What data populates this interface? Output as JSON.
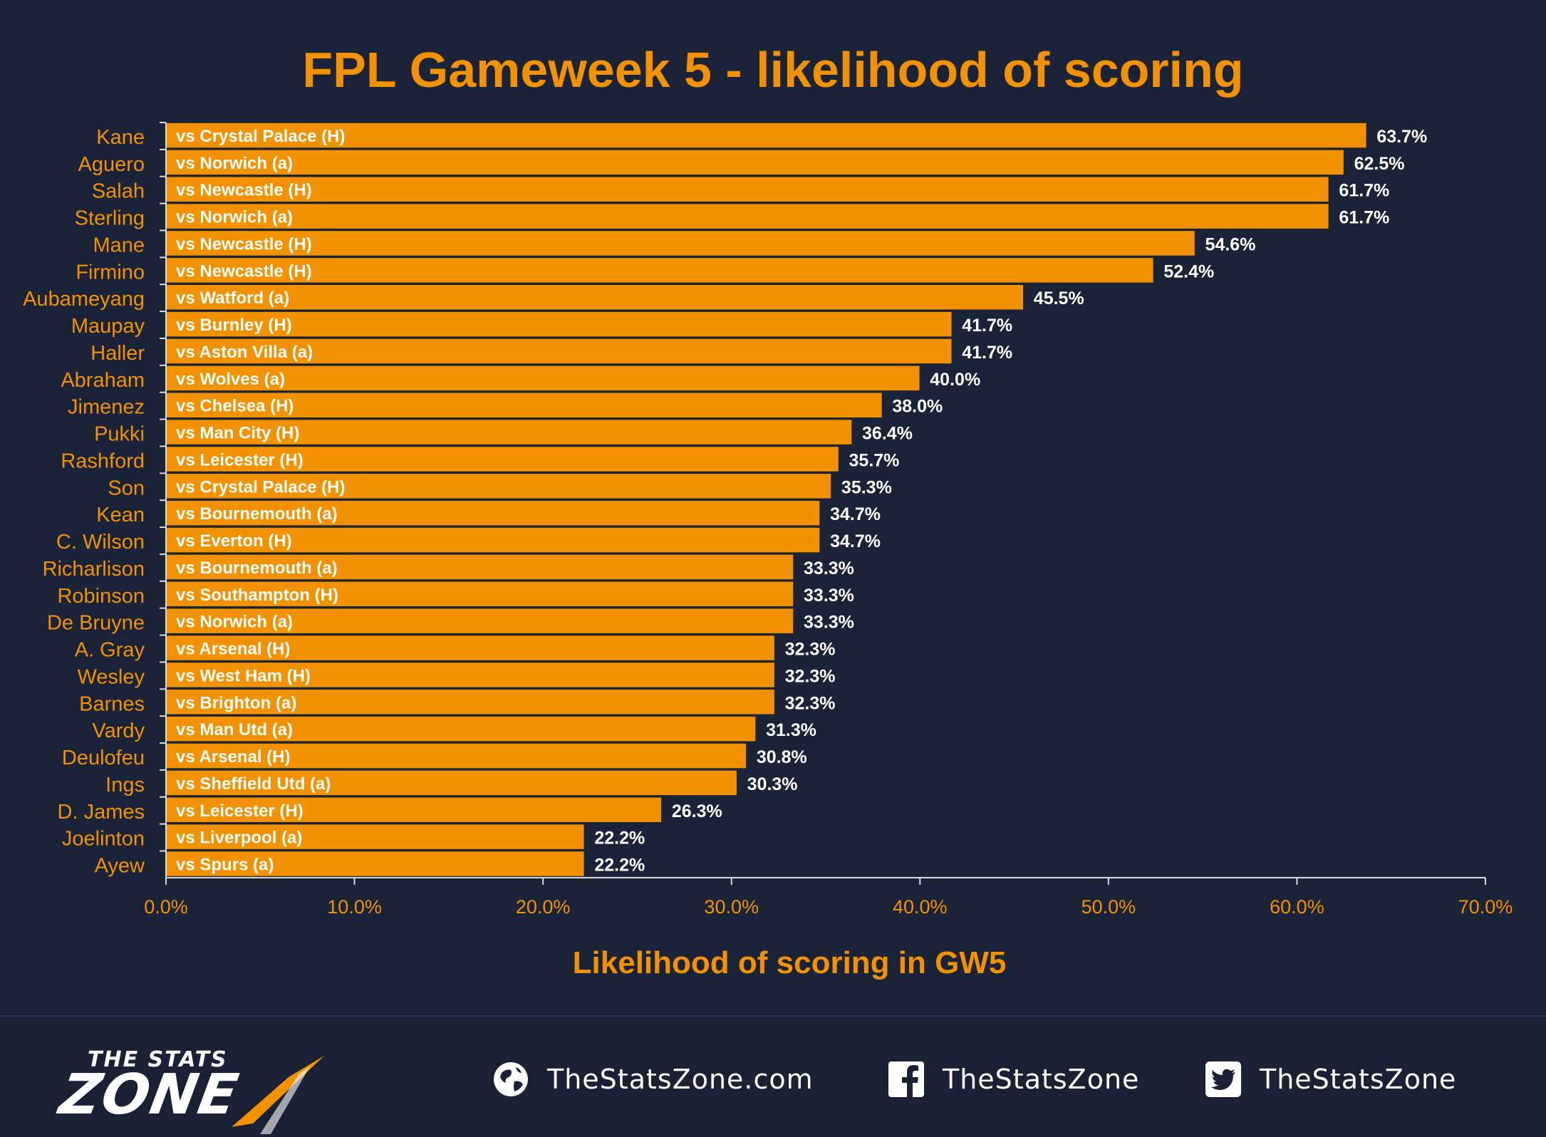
{
  "chart_data": {
    "type": "bar",
    "orientation": "horizontal",
    "title": "FPL Gameweek 5 - likelihood of scoring",
    "xlabel": "Likelihood of scoring in GW5",
    "ylabel": "",
    "xlim": [
      0,
      70
    ],
    "x_ticks": [
      0,
      10,
      20,
      30,
      40,
      50,
      60,
      70
    ],
    "x_tick_labels": [
      "0.0%",
      "10.0%",
      "20.0%",
      "30.0%",
      "40.0%",
      "50.0%",
      "60.0%",
      "70.0%"
    ],
    "grid": false,
    "categories": [
      "Kane",
      "Aguero",
      "Salah",
      "Sterling",
      "Mane",
      "Firmino",
      "Aubameyang",
      "Maupay",
      "Haller",
      "Abraham",
      "Jimenez",
      "Pukki",
      "Rashford",
      "Son",
      "Kean",
      "C. Wilson",
      "Richarlison",
      "Robinson",
      "De Bruyne",
      "A. Gray",
      "Wesley",
      "Barnes",
      "Vardy",
      "Deulofeu",
      "Ings",
      "D. James",
      "Joelinton",
      "Ayew"
    ],
    "values": [
      63.7,
      62.5,
      61.7,
      61.7,
      54.6,
      52.4,
      45.5,
      41.7,
      41.7,
      40.0,
      38.0,
      36.4,
      35.7,
      35.3,
      34.7,
      34.7,
      33.3,
      33.3,
      33.3,
      32.3,
      32.3,
      32.3,
      31.3,
      30.8,
      30.3,
      26.3,
      22.2,
      22.2
    ],
    "value_labels": [
      "63.7%",
      "62.5%",
      "61.7%",
      "61.7%",
      "54.6%",
      "52.4%",
      "45.5%",
      "41.7%",
      "41.7%",
      "40.0%",
      "38.0%",
      "36.4%",
      "35.7%",
      "35.3%",
      "34.7%",
      "34.7%",
      "33.3%",
      "33.3%",
      "33.3%",
      "32.3%",
      "32.3%",
      "32.3%",
      "31.3%",
      "30.8%",
      "30.3%",
      "26.3%",
      "22.2%",
      "22.2%"
    ],
    "bar_labels": [
      "vs Crystal Palace (H)",
      "vs Norwich (a)",
      "vs Newcastle (H)",
      "vs Norwich (a)",
      "vs Newcastle (H)",
      "vs Newcastle (H)",
      "vs Watford (a)",
      "vs Burnley (H)",
      "vs Aston Villa (a)",
      "vs Wolves (a)",
      "vs Chelsea (H)",
      "vs Man City (H)",
      "vs Leicester (H)",
      "vs Crystal Palace (H)",
      "vs Bournemouth (a)",
      "vs Everton (H)",
      "vs Bournemouth (a)",
      "vs Southampton (H)",
      "vs Norwich (a)",
      "vs Arsenal (H)",
      "vs West Ham (H)",
      "vs Brighton (a)",
      "vs Man Utd (a)",
      "vs Arsenal (H)",
      "vs Sheffield Utd (a)",
      "vs Leicester (H)",
      "vs Liverpool (a)",
      "vs Spurs (a)"
    ],
    "colors": {
      "background": "#1b2338",
      "bar": "#f39200",
      "bar_border": "#1b2338",
      "accent_text": "#f39200",
      "value_text": "#ffffff",
      "bar_text": "#ffffff",
      "axis": "#d9d9d9"
    }
  },
  "footer": {
    "logo_top": "THE STATS",
    "logo_main": "ZONE",
    "website": "TheStatsZone.com",
    "facebook": "TheStatsZone",
    "twitter": "TheStatsZone",
    "icons": [
      "globe-icon",
      "facebook-icon",
      "twitter-icon"
    ]
  }
}
